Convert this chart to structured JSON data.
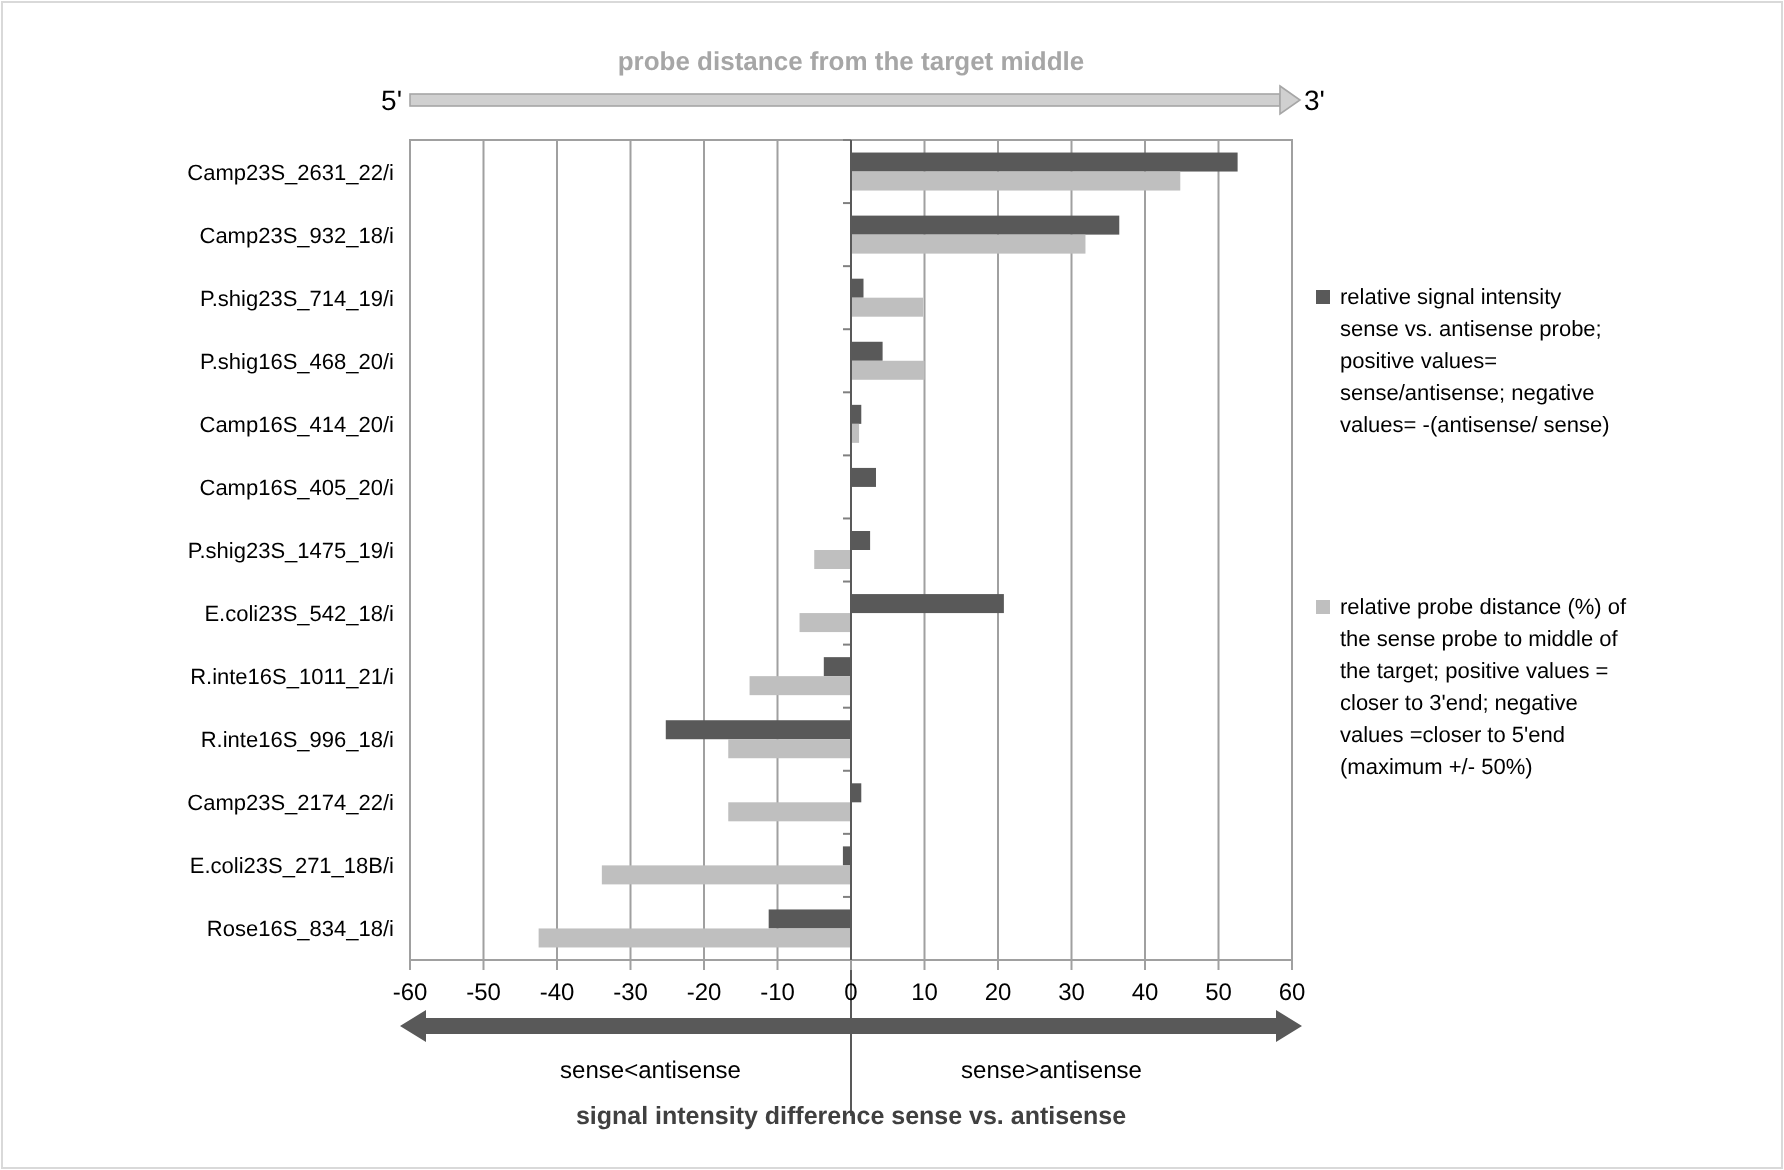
{
  "chart_data": {
    "type": "bar",
    "orientation": "horizontal",
    "title": "probe distance from the target middle",
    "xlabel": "signal intensity difference sense vs. antisense",
    "categories": [
      "Camp23S_2631_22/i",
      "Camp23S_932_18/i",
      "P.shig23S_714_19/i",
      "P.shig16S_468_20/i",
      "Camp16S_414_20/i",
      "Camp16S_405_20/i",
      "P.shig23S_1475_19/i",
      "E.coli23S_542_18/i",
      "R.inte16S_1011_21/i",
      "R.inte16S_996_18/i",
      "Camp23S_2174_22/i",
      "E.coli23S_271_18B/i",
      "Rose16S_834_18/i"
    ],
    "series": [
      {
        "name": "relative signal intensity sense vs. antisense probe; positive values= sense/antisense; negative values= -(antisense/ sense)",
        "color": "#595959",
        "values": [
          52.6,
          36.5,
          1.7,
          4.3,
          1.4,
          3.4,
          2.6,
          20.8,
          -3.7,
          -25.2,
          1.4,
          -1.1,
          -11.2
        ]
      },
      {
        "name": "relative probe distance (%) of the sense probe to middle of the target; positive values = closer to 3'end; negative values =closer to 5'end (maximum +/- 50%)",
        "color": "#bfbfbf",
        "values": [
          44.8,
          31.9,
          9.8,
          10,
          1.1,
          null,
          -5,
          -7,
          -13.8,
          -16.7,
          -16.7,
          -33.9,
          -42.5
        ]
      }
    ],
    "xlim": [
      -60,
      60
    ],
    "xticks": [
      -60,
      -50,
      -40,
      -30,
      -20,
      -10,
      0,
      10,
      20,
      30,
      40,
      50,
      60
    ],
    "grid": "x",
    "legend": "right",
    "annotations": [
      "5'",
      "3'",
      "sense<antisense",
      "sense>antisense"
    ]
  }
}
